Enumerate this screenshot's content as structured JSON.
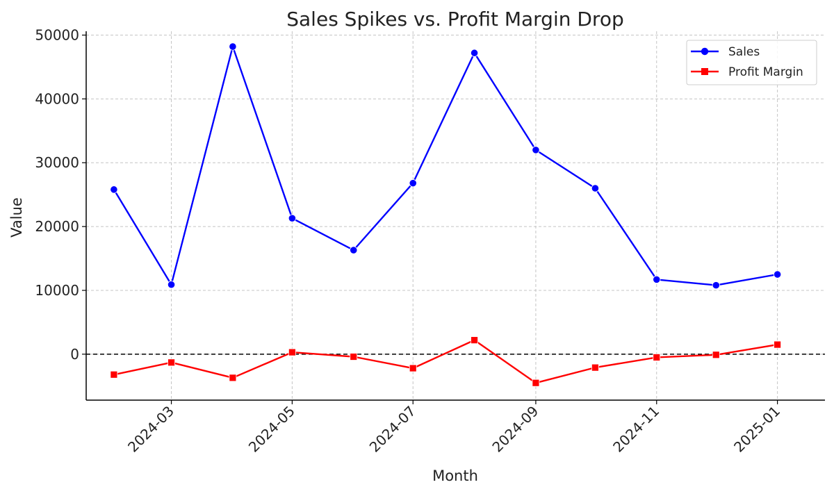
{
  "chart_data": {
    "type": "line",
    "title": "Sales Spikes vs. Profit Margin Drop",
    "xlabel": "Month",
    "ylabel": "Value",
    "x": [
      "2024-02",
      "2024-03",
      "2024-04",
      "2024-05",
      "2024-06",
      "2024-07",
      "2024-08",
      "2024-09",
      "2024-10",
      "2024-11",
      "2024-12",
      "2025-01"
    ],
    "x_ticks": [
      "2024-03",
      "2024-05",
      "2024-07",
      "2024-09",
      "2024-11",
      "2025-01"
    ],
    "y_ticks": [
      0,
      10000,
      20000,
      30000,
      40000,
      50000
    ],
    "ylim": [
      -7200,
      50600
    ],
    "xlim": [
      "2024-01-18",
      "2025-01-25"
    ],
    "grid": true,
    "legend_position": "top-right",
    "reference_line": {
      "y": 0,
      "style": "dashed",
      "color": "#000000"
    },
    "series": [
      {
        "name": "Sales",
        "color": "#0000ff",
        "marker": "circle",
        "values": [
          25800,
          10900,
          48200,
          21300,
          16300,
          26800,
          47200,
          32000,
          26000,
          11700,
          10800,
          12500
        ]
      },
      {
        "name": "Profit Margin",
        "color": "#ff0000",
        "marker": "square",
        "values": [
          -3200,
          -1300,
          -3700,
          300,
          -400,
          -2200,
          2200,
          -4500,
          -2100,
          -500,
          -100,
          1500
        ]
      }
    ]
  }
}
